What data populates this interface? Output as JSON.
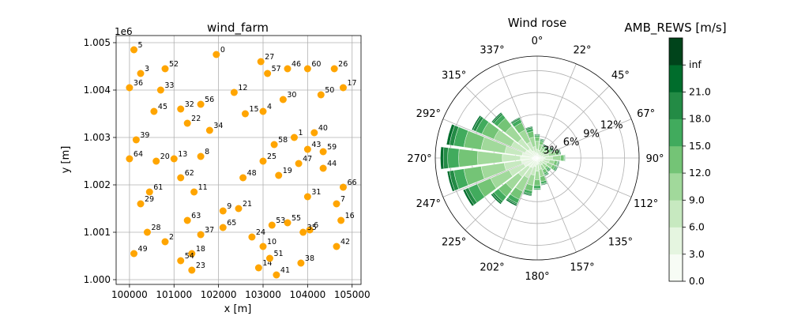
{
  "chart_data": [
    {
      "type": "scatter",
      "title": "wind_farm",
      "xlabel": "x [m]",
      "ylabel": "y [m]",
      "offset_label": "1e6",
      "xlim": [
        99700,
        105200
      ],
      "ylim": [
        999900,
        1005150
      ],
      "xticks": [
        100000,
        101000,
        102000,
        103000,
        104000,
        105000
      ],
      "yticks": [
        1000000,
        1001000,
        1002000,
        1003000,
        1004000,
        1005000
      ],
      "xtick_labels": [
        "100000",
        "101000",
        "102000",
        "103000",
        "104000",
        "105000"
      ],
      "ytick_labels": [
        "1.000",
        "1.001",
        "1.002",
        "1.003",
        "1.004",
        "1.005"
      ],
      "grid": true,
      "marker_color": "#ffa500",
      "points": [
        {
          "id": "0",
          "x": 101950,
          "y": 1004750
        },
        {
          "id": "1",
          "x": 103700,
          "y": 1003000
        },
        {
          "id": "2",
          "x": 100800,
          "y": 1000800
        },
        {
          "id": "3",
          "x": 100250,
          "y": 1004350
        },
        {
          "id": "4",
          "x": 103000,
          "y": 1003550
        },
        {
          "id": "5",
          "x": 100100,
          "y": 1004850
        },
        {
          "id": "6",
          "x": 104050,
          "y": 1001050
        },
        {
          "id": "7",
          "x": 104650,
          "y": 1001600
        },
        {
          "id": "8",
          "x": 101600,
          "y": 1002600
        },
        {
          "id": "9",
          "x": 102100,
          "y": 1001450
        },
        {
          "id": "10",
          "x": 103000,
          "y": 1000700
        },
        {
          "id": "11",
          "x": 101450,
          "y": 1001850
        },
        {
          "id": "12",
          "x": 102350,
          "y": 1003950
        },
        {
          "id": "13",
          "x": 101000,
          "y": 1002550
        },
        {
          "id": "14",
          "x": 102900,
          "y": 1000250
        },
        {
          "id": "15",
          "x": 102600,
          "y": 1003500
        },
        {
          "id": "16",
          "x": 104750,
          "y": 1001250
        },
        {
          "id": "17",
          "x": 104800,
          "y": 1004050
        },
        {
          "id": "18",
          "x": 101400,
          "y": 1000550
        },
        {
          "id": "19",
          "x": 103350,
          "y": 1002200
        },
        {
          "id": "20",
          "x": 100600,
          "y": 1002500
        },
        {
          "id": "21",
          "x": 102450,
          "y": 1001500
        },
        {
          "id": "22",
          "x": 101300,
          "y": 1003300
        },
        {
          "id": "23",
          "x": 101400,
          "y": 1000200
        },
        {
          "id": "24",
          "x": 102750,
          "y": 1000900
        },
        {
          "id": "25",
          "x": 103000,
          "y": 1002500
        },
        {
          "id": "26",
          "x": 104600,
          "y": 1004450
        },
        {
          "id": "27",
          "x": 102950,
          "y": 1004600
        },
        {
          "id": "28",
          "x": 100400,
          "y": 1001000
        },
        {
          "id": "29",
          "x": 100250,
          "y": 1001600
        },
        {
          "id": "30",
          "x": 103450,
          "y": 1003800
        },
        {
          "id": "31",
          "x": 104000,
          "y": 1001750
        },
        {
          "id": "32",
          "x": 101150,
          "y": 1003600
        },
        {
          "id": "33",
          "x": 100700,
          "y": 1004000
        },
        {
          "id": "34",
          "x": 101800,
          "y": 1003150
        },
        {
          "id": "35",
          "x": 103900,
          "y": 1001000
        },
        {
          "id": "36",
          "x": 100000,
          "y": 1004050
        },
        {
          "id": "37",
          "x": 101600,
          "y": 1000950
        },
        {
          "id": "38",
          "x": 103850,
          "y": 1000350
        },
        {
          "id": "39",
          "x": 100150,
          "y": 1002950
        },
        {
          "id": "40",
          "x": 104150,
          "y": 1003100
        },
        {
          "id": "41",
          "x": 103300,
          "y": 1000100
        },
        {
          "id": "42",
          "x": 104650,
          "y": 1000700
        },
        {
          "id": "43",
          "x": 104000,
          "y": 1002750
        },
        {
          "id": "44",
          "x": 104350,
          "y": 1002350
        },
        {
          "id": "45",
          "x": 100550,
          "y": 1003550
        },
        {
          "id": "46",
          "x": 103550,
          "y": 1004450
        },
        {
          "id": "47",
          "x": 103800,
          "y": 1002450
        },
        {
          "id": "48",
          "x": 102550,
          "y": 1002150
        },
        {
          "id": "49",
          "x": 100100,
          "y": 1000550
        },
        {
          "id": "50",
          "x": 104300,
          "y": 1003900
        },
        {
          "id": "51",
          "x": 103150,
          "y": 1000450
        },
        {
          "id": "52",
          "x": 100800,
          "y": 1004450
        },
        {
          "id": "53",
          "x": 103200,
          "y": 1001150
        },
        {
          "id": "54",
          "x": 101150,
          "y": 1000400
        },
        {
          "id": "55",
          "x": 103550,
          "y": 1001200
        },
        {
          "id": "56",
          "x": 101600,
          "y": 1003700
        },
        {
          "id": "57",
          "x": 103100,
          "y": 1004350
        },
        {
          "id": "58",
          "x": 103250,
          "y": 1002850
        },
        {
          "id": "59",
          "x": 104350,
          "y": 1002700
        },
        {
          "id": "60",
          "x": 104000,
          "y": 1004450
        },
        {
          "id": "61",
          "x": 100450,
          "y": 1001850
        },
        {
          "id": "62",
          "x": 101150,
          "y": 1002150
        },
        {
          "id": "63",
          "x": 101300,
          "y": 1001250
        },
        {
          "id": "64",
          "x": 100000,
          "y": 1002550
        },
        {
          "id": "65",
          "x": 102100,
          "y": 1001100
        },
        {
          "id": "66",
          "x": 104800,
          "y": 1001950
        }
      ]
    },
    {
      "type": "wind_rose",
      "title": "Wind rose",
      "direction_labels": [
        "0°",
        "22°",
        "45°",
        "67°",
        "90°",
        "112°",
        "135°",
        "157°",
        "180°",
        "202°",
        "225°",
        "247°",
        "270°",
        "292°",
        "315°",
        "337°"
      ],
      "radial_ticks": [
        3,
        6,
        9,
        12
      ],
      "radial_tick_labels": [
        "3%",
        "6%",
        "9%",
        "12%"
      ],
      "r_max": 14,
      "speed_bins": [
        "0.0-3.0",
        "3.0-6.0",
        "6.0-9.0",
        "9.0-12.0",
        "12.0-15.0",
        "15.0-18.0",
        "18.0-21.0",
        "21.0-inf"
      ],
      "sectors": [
        {
          "direction": 0,
          "cumulative_percent": [
            0.2,
            0.6,
            1.2,
            2.3,
            2.9,
            3.1,
            3.2,
            3.3
          ]
        },
        {
          "direction": 15,
          "cumulative_percent": [
            0.2,
            0.6,
            1.1,
            1.9,
            2.3,
            2.5,
            2.6,
            2.7
          ]
        },
        {
          "direction": 30,
          "cumulative_percent": [
            0.2,
            0.5,
            0.9,
            1.5,
            1.8,
            1.9,
            2.0,
            2.1
          ]
        },
        {
          "direction": 45,
          "cumulative_percent": [
            0.2,
            0.5,
            0.9,
            1.4,
            1.7,
            1.8,
            1.9,
            2.0
          ]
        },
        {
          "direction": 60,
          "cumulative_percent": [
            0.2,
            0.6,
            1.1,
            1.7,
            2.1,
            2.3,
            2.4,
            2.5
          ]
        },
        {
          "direction": 75,
          "cumulative_percent": [
            0.3,
            0.8,
            1.6,
            2.6,
            3.0,
            3.1,
            3.2,
            3.3
          ]
        },
        {
          "direction": 90,
          "cumulative_percent": [
            0.4,
            1.1,
            2.1,
            3.2,
            3.7,
            3.8,
            3.85,
            3.9
          ]
        },
        {
          "direction": 105,
          "cumulative_percent": [
            0.3,
            0.9,
            1.7,
            2.4,
            2.8,
            2.9,
            3.0,
            3.1
          ]
        },
        {
          "direction": 120,
          "cumulative_percent": [
            0.3,
            0.8,
            1.5,
            2.3,
            2.7,
            2.9,
            3.0,
            3.1
          ]
        },
        {
          "direction": 135,
          "cumulative_percent": [
            0.2,
            0.6,
            1.1,
            1.7,
            2.0,
            2.2,
            2.3,
            2.4
          ]
        },
        {
          "direction": 150,
          "cumulative_percent": [
            0.2,
            0.6,
            1.1,
            1.8,
            2.3,
            2.5,
            2.6,
            2.7
          ]
        },
        {
          "direction": 165,
          "cumulative_percent": [
            0.3,
            0.8,
            1.6,
            2.6,
            3.3,
            3.6,
            3.7,
            3.8
          ]
        },
        {
          "direction": 180,
          "cumulative_percent": [
            0.3,
            0.9,
            1.8,
            3.0,
            3.8,
            4.2,
            4.35,
            4.4
          ]
        },
        {
          "direction": 195,
          "cumulative_percent": [
            0.4,
            1.2,
            2.4,
            3.8,
            4.6,
            5.0,
            5.2,
            5.3
          ]
        },
        {
          "direction": 210,
          "cumulative_percent": [
            0.5,
            1.5,
            3.0,
            5.0,
            6.2,
            6.8,
            7.0,
            7.2
          ]
        },
        {
          "direction": 225,
          "cumulative_percent": [
            0.5,
            1.6,
            3.3,
            5.5,
            6.8,
            7.6,
            7.9,
            8.1
          ]
        },
        {
          "direction": 240,
          "cumulative_percent": [
            0.6,
            2.0,
            4.2,
            7.0,
            9.0,
            10.3,
            10.8,
            11.1
          ]
        },
        {
          "direction": 255,
          "cumulative_percent": [
            0.7,
            2.2,
            4.6,
            7.8,
            10.2,
            11.6,
            12.2,
            12.5
          ]
        },
        {
          "direction": 270,
          "cumulative_percent": [
            0.7,
            2.3,
            4.8,
            8.2,
            10.8,
            12.3,
            12.9,
            13.3
          ]
        },
        {
          "direction": 285,
          "cumulative_percent": [
            0.6,
            2.1,
            4.5,
            7.8,
            10.2,
            11.6,
            12.2,
            12.6
          ]
        },
        {
          "direction": 300,
          "cumulative_percent": [
            0.5,
            1.8,
            3.9,
            6.5,
            8.3,
            9.2,
            9.6,
            9.8
          ]
        },
        {
          "direction": 315,
          "cumulative_percent": [
            0.5,
            1.6,
            3.4,
            5.6,
            7.0,
            7.6,
            7.85,
            8.0
          ]
        },
        {
          "direction": 330,
          "cumulative_percent": [
            0.3,
            1.1,
            2.4,
            4.2,
            5.3,
            5.8,
            6.0,
            6.1
          ]
        },
        {
          "direction": 345,
          "cumulative_percent": [
            0.3,
            0.8,
            1.6,
            2.9,
            3.7,
            4.1,
            4.3,
            4.4
          ]
        }
      ]
    },
    {
      "type": "colorbar",
      "title": "AMB_REWS [m/s]",
      "tick_labels": [
        "0.0",
        "3.0",
        "6.0",
        "9.0",
        "12.0",
        "15.0",
        "18.0",
        "21.0",
        "inf"
      ],
      "colors": [
        "#f7fcf5",
        "#e5f5e0",
        "#c7e9c0",
        "#a1d99b",
        "#74c476",
        "#41ab5d",
        "#238b45",
        "#006d2c",
        "#00441b"
      ]
    }
  ]
}
